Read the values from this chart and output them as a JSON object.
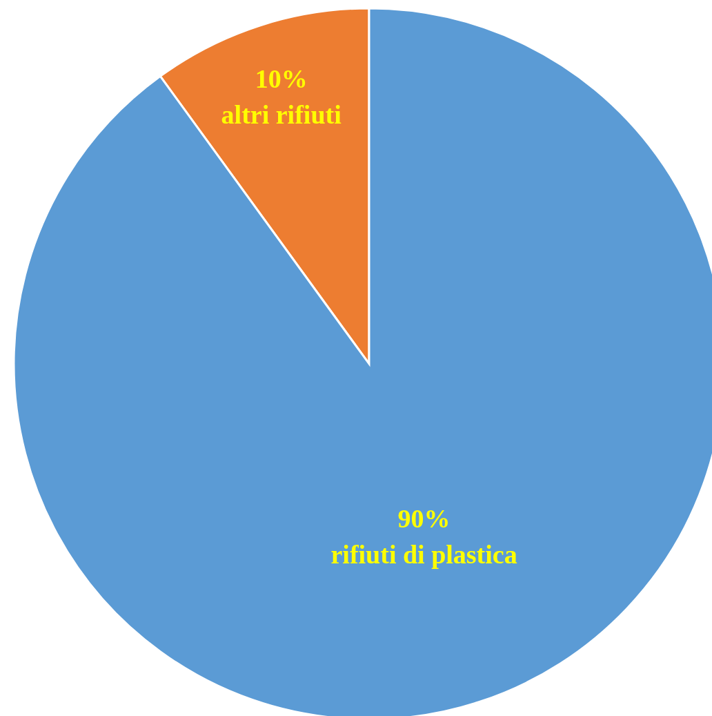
{
  "chart_data": {
    "type": "pie",
    "categories": [
      "altri rifiuti",
      "rifiuti di plastica"
    ],
    "values": [
      10,
      90
    ],
    "colors": [
      "#ed7d31",
      "#5b9bd5"
    ],
    "value_labels": [
      "10%",
      "90%"
    ],
    "legend": false
  }
}
